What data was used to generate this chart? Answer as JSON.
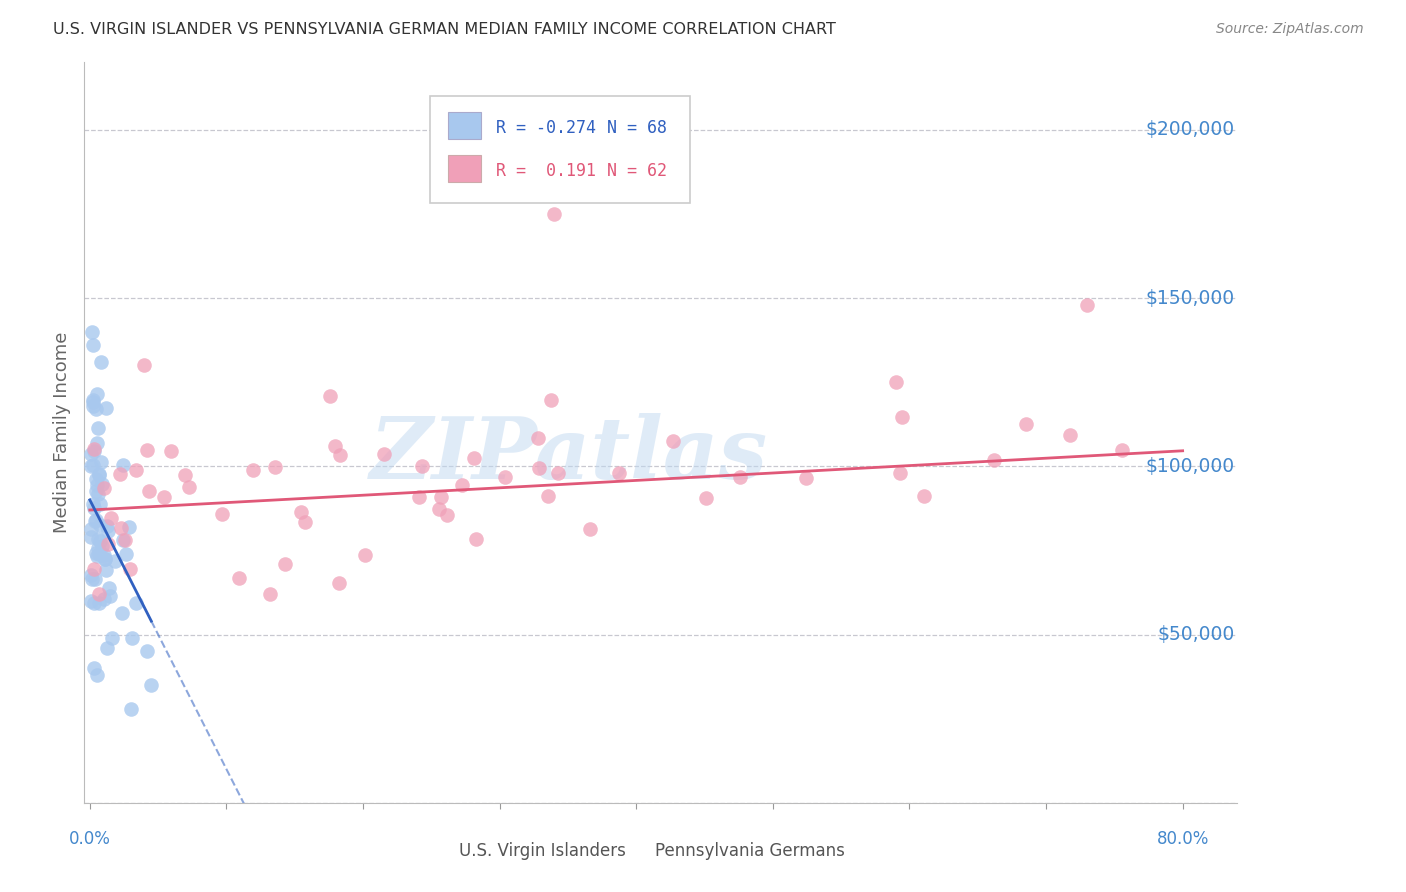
{
  "title": "U.S. VIRGIN ISLANDER VS PENNSYLVANIA GERMAN MEDIAN FAMILY INCOME CORRELATION CHART",
  "source": "Source: ZipAtlas.com",
  "ylabel": "Median Family Income",
  "yticks": [
    0,
    50000,
    100000,
    150000,
    200000
  ],
  "ytick_labels": [
    "",
    "$50,000",
    "$100,000",
    "$150,000",
    "$200,000"
  ],
  "ymin": 0,
  "ymax": 220000,
  "xmin": -0.004,
  "xmax": 0.84,
  "label1": "U.S. Virgin Islanders",
  "label2": "Pennsylvania Germans",
  "color1": "#a8c8ee",
  "color2": "#f0a0b8",
  "line_color1": "#3060c0",
  "line_color2": "#e05878",
  "title_color": "#333333",
  "ytick_color": "#4488cc",
  "xtick_color": "#4488cc",
  "background_color": "#ffffff",
  "grid_color": "#c8c8d0",
  "watermark": "ZIPatlas",
  "watermark_color": "#c0d8f0"
}
